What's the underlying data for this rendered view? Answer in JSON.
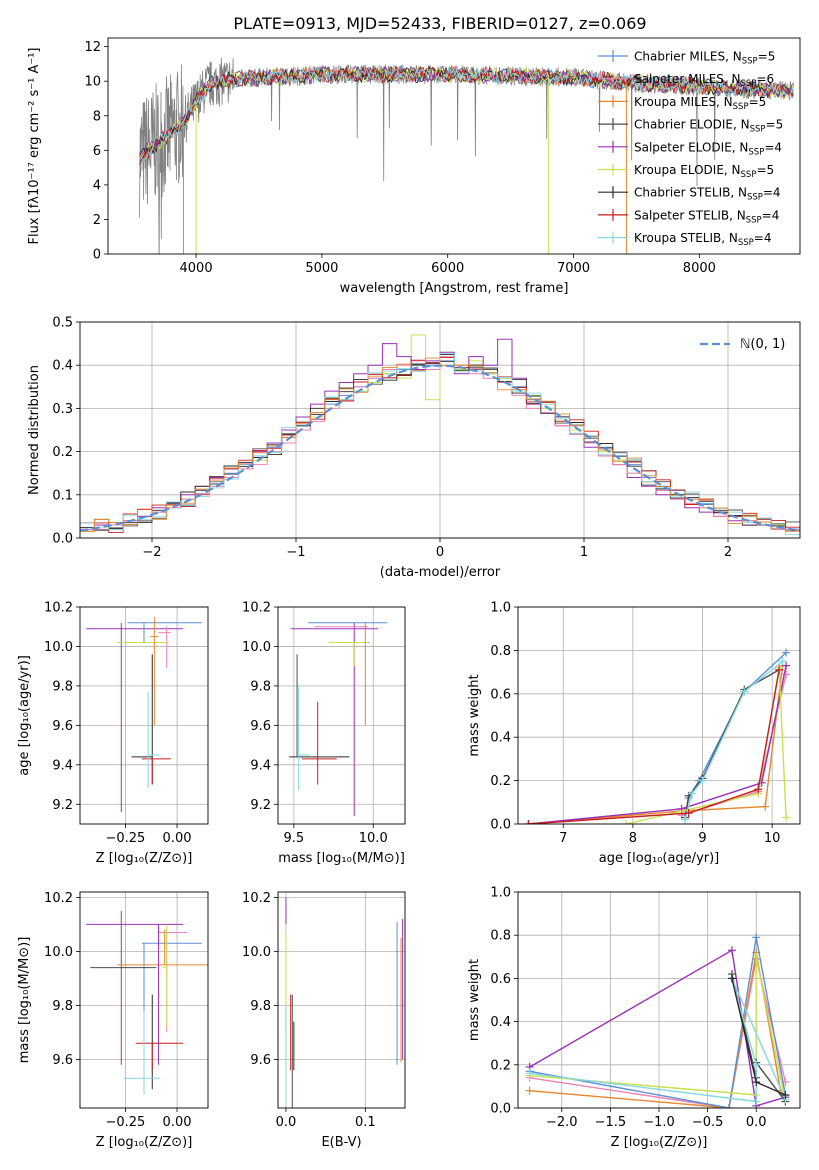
{
  "figure": {
    "title": "PLATE=0913, MJD=52433, FIBERID=0127, z=0.069"
  },
  "series_legend": [
    {
      "label": "Chabrier MILES, N",
      "sub": "SSP",
      "tail": "=5",
      "color": "#5b8fd6"
    },
    {
      "label": "Salpeter MILES, N",
      "sub": "SSP",
      "tail": "=6",
      "color": "#ee82b4"
    },
    {
      "label": "Kroupa MILES, N",
      "sub": "SSP",
      "tail": "=5",
      "color": "#e6862e"
    },
    {
      "label": "Chabrier ELODIE, N",
      "sub": "SSP",
      "tail": "=5",
      "color": "#4d4d4d"
    },
    {
      "label": "Salpeter ELODIE, N",
      "sub": "SSP",
      "tail": "=4",
      "color": "#9b30b8"
    },
    {
      "label": "Kroupa ELODIE, N",
      "sub": "SSP",
      "tail": "=5",
      "color": "#c8e050"
    },
    {
      "label": "Chabrier STELIB, N",
      "sub": "SSP",
      "tail": "=4",
      "color": "#2b2b2b"
    },
    {
      "label": "Salpeter STELIB, N",
      "sub": "SSP",
      "tail": "=4",
      "color": "#c81e1e"
    },
    {
      "label": "Kroupa STELIB, N",
      "sub": "SSP",
      "tail": "=4",
      "color": "#86d8e0"
    }
  ],
  "chart_data": [
    {
      "type": "line",
      "id": "spectrum",
      "xlabel": "wavelength [Angstrom, rest frame]",
      "ylabel": "Flux [fλ10⁻¹⁷ erg cm⁻² s⁻¹ A⁻¹]",
      "xlim": [
        3300,
        8800
      ],
      "ylim": [
        0,
        12.5
      ],
      "xticks": [
        "4000",
        "5000",
        "6000",
        "7000",
        "8000"
      ],
      "yticks": [
        "0",
        "2",
        "4",
        "6",
        "8",
        "10",
        "12"
      ],
      "continuum": {
        "x": [
          3550,
          3700,
          3800,
          3900,
          4000,
          4100,
          4300,
          4500,
          4800,
          5000,
          5300,
          5600,
          6000,
          6500,
          7000,
          7500,
          8000,
          8500,
          8800
        ],
        "y": [
          5.6,
          6.5,
          7.0,
          7.6,
          8.8,
          9.8,
          10.1,
          10.2,
          10.3,
          10.4,
          10.4,
          10.4,
          10.4,
          10.3,
          10.2,
          9.9,
          9.7,
          9.5,
          9.4
        ]
      }
    },
    {
      "type": "bar",
      "id": "residuals",
      "xlabel": "(data-model)/error",
      "ylabel": "Normed distribution",
      "xlim": [
        -2.5,
        2.5
      ],
      "ylim": [
        0,
        0.5
      ],
      "xticks": [
        "−2",
        "−1",
        "0",
        "1",
        "2"
      ],
      "yticks": [
        "0.0",
        "0.1",
        "0.2",
        "0.3",
        "0.4",
        "0.5"
      ],
      "legend": "ℕ(0, 1)",
      "bin_width": 0.1,
      "series": [
        {
          "name": "Chabrier MILES",
          "values": [
            0.02,
            0.03,
            0.03,
            0.04,
            0.05,
            0.06,
            0.08,
            0.09,
            0.11,
            0.13,
            0.15,
            0.17,
            0.19,
            0.21,
            0.24,
            0.26,
            0.29,
            0.31,
            0.33,
            0.35,
            0.37,
            0.38,
            0.39,
            0.4,
            0.4,
            0.41,
            0.4,
            0.39,
            0.38,
            0.36,
            0.35,
            0.32,
            0.3,
            0.28,
            0.26,
            0.23,
            0.21,
            0.19,
            0.17,
            0.14,
            0.12,
            0.11,
            0.09,
            0.08,
            0.06,
            0.05,
            0.04,
            0.03,
            0.03,
            0.02
          ]
        },
        {
          "name": "Kroupa ELODIE",
          "values": [
            0.02,
            0.02,
            0.03,
            0.04,
            0.05,
            0.06,
            0.07,
            0.09,
            0.1,
            0.12,
            0.14,
            0.16,
            0.18,
            0.2,
            0.22,
            0.25,
            0.28,
            0.3,
            0.32,
            0.34,
            0.36,
            0.38,
            0.37,
            0.47,
            0.32,
            0.4,
            0.39,
            0.41,
            0.38,
            0.37,
            0.34,
            0.33,
            0.3,
            0.27,
            0.25,
            0.22,
            0.2,
            0.18,
            0.15,
            0.13,
            0.11,
            0.1,
            0.08,
            0.07,
            0.06,
            0.05,
            0.04,
            0.03,
            0.03,
            0.02
          ]
        },
        {
          "name": "Salpeter ELODIE",
          "values": [
            0.02,
            0.03,
            0.03,
            0.04,
            0.05,
            0.07,
            0.08,
            0.1,
            0.12,
            0.14,
            0.16,
            0.18,
            0.2,
            0.22,
            0.25,
            0.28,
            0.31,
            0.34,
            0.36,
            0.38,
            0.4,
            0.45,
            0.42,
            0.39,
            0.41,
            0.43,
            0.38,
            0.42,
            0.4,
            0.46,
            0.37,
            0.31,
            0.29,
            0.26,
            0.24,
            0.21,
            0.19,
            0.17,
            0.14,
            0.12,
            0.1,
            0.09,
            0.07,
            0.06,
            0.05,
            0.04,
            0.03,
            0.03,
            0.02,
            0.02
          ]
        },
        {
          "name": "Salpeter MILES",
          "values": [
            0.02,
            0.02,
            0.03,
            0.04,
            0.04,
            0.06,
            0.07,
            0.09,
            0.1,
            0.12,
            0.14,
            0.16,
            0.17,
            0.2,
            0.22,
            0.25,
            0.27,
            0.3,
            0.32,
            0.35,
            0.37,
            0.39,
            0.4,
            0.41,
            0.39,
            0.42,
            0.4,
            0.38,
            0.37,
            0.36,
            0.33,
            0.3,
            0.29,
            0.26,
            0.24,
            0.22,
            0.19,
            0.17,
            0.15,
            0.13,
            0.11,
            0.09,
            0.08,
            0.07,
            0.05,
            0.05,
            0.04,
            0.03,
            0.02,
            0.02
          ]
        }
      ]
    },
    {
      "type": "scatter",
      "id": "age-vs-Z",
      "xlabel": "Z [log₁₀(Z/Z⊙)]",
      "ylabel": "age  [log₁₀(age/yr)]",
      "xlim": [
        -0.47,
        0.15
      ],
      "ylim": [
        9.1,
        10.2
      ],
      "xticks": [
        "−0.25",
        "0.00"
      ],
      "yticks": [
        "9.2",
        "9.4",
        "9.6",
        "9.8",
        "10.0",
        "10.2"
      ]
    },
    {
      "type": "scatter",
      "id": "age-vs-mass",
      "xlabel": "mass [log₁₀(M/M⊙)]",
      "ylabel": "",
      "xlim": [
        9.4,
        10.2
      ],
      "ylim": [
        9.1,
        10.2
      ],
      "xticks": [
        "9.5",
        "10.0"
      ],
      "yticks": [
        "9.2",
        "9.4",
        "9.6",
        "9.8",
        "10.0",
        "10.2"
      ]
    },
    {
      "type": "line",
      "id": "weight-vs-age",
      "xlabel": "age  [log₁₀(age/yr)]",
      "ylabel": "mass weight",
      "xlim": [
        6.35,
        10.4
      ],
      "ylim": [
        0,
        1.0
      ],
      "xticks": [
        "7",
        "8",
        "9",
        "10"
      ],
      "yticks": [
        "0.0",
        "0.2",
        "0.4",
        "0.6",
        "0.8",
        "1.0"
      ]
    },
    {
      "type": "scatter",
      "id": "mass-vs-Z",
      "xlabel": "Z [log₁₀(Z/Z⊙)]",
      "ylabel": "mass [log₁₀(M/M⊙)]",
      "xlim": [
        -0.47,
        0.15
      ],
      "ylim": [
        9.42,
        10.22
      ],
      "xticks": [
        "−0.25",
        "0.00"
      ],
      "yticks": [
        "9.6",
        "9.8",
        "10.0",
        "10.2"
      ]
    },
    {
      "type": "scatter",
      "id": "mass-vs-EBV",
      "xlabel": "E(B-V)",
      "ylabel": "",
      "xlim": [
        -0.01,
        0.15
      ],
      "ylim": [
        9.42,
        10.22
      ],
      "xticks": [
        "0.0",
        "0.1"
      ],
      "yticks": [
        "9.6",
        "9.8",
        "10.0",
        "10.2"
      ]
    },
    {
      "type": "line",
      "id": "weight-vs-Z",
      "xlabel": "Z [log₁₀(Z/Z⊙)]",
      "ylabel": "mass weight",
      "xlim": [
        -2.45,
        0.45
      ],
      "ylim": [
        0,
        1.0
      ],
      "xticks": [
        "−2.0",
        "−1.5",
        "−1.0",
        "−0.5",
        "0.0"
      ],
      "yticks": [
        "0.0",
        "0.2",
        "0.4",
        "0.6",
        "0.8",
        "1.0"
      ]
    }
  ]
}
